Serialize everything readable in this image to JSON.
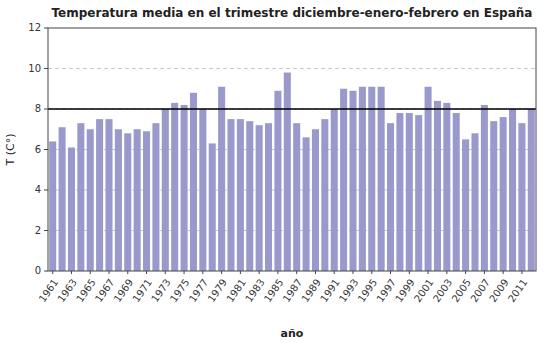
{
  "chart_data": {
    "type": "bar",
    "title": "Temperatura media en el trimestre diciembre-enero-febrero en España",
    "x_label": "año",
    "y_label": "T (C°)",
    "categories": [
      "1961",
      null,
      "1963",
      null,
      "1965",
      null,
      "1967",
      null,
      "1969",
      null,
      "1971",
      null,
      "1973",
      null,
      "1975",
      null,
      "1977",
      null,
      "1979",
      null,
      "1981",
      null,
      "1983",
      null,
      "1985",
      null,
      "1987",
      null,
      "1989",
      null,
      "1991",
      null,
      "1993",
      null,
      "1995",
      null,
      "1997",
      null,
      "1999",
      null,
      "2001",
      null,
      "2003",
      null,
      "2005",
      null,
      "2007",
      null,
      "2009",
      null,
      "2011",
      null
    ],
    "values": [
      6.4,
      7.1,
      6.1,
      7.3,
      7.0,
      7.5,
      7.5,
      7.0,
      6.8,
      7.0,
      6.9,
      7.3,
      8.0,
      8.3,
      8.2,
      8.8,
      8.0,
      6.3,
      9.1,
      7.5,
      7.5,
      7.4,
      7.2,
      7.3,
      8.9,
      9.8,
      7.3,
      6.6,
      7.0,
      7.5,
      8.0,
      9.0,
      8.9,
      9.1,
      9.1,
      9.1,
      7.3,
      7.8,
      7.8,
      7.7,
      9.1,
      8.4,
      8.3,
      7.8,
      6.5,
      6.8,
      8.2,
      7.4,
      7.6,
      8.0,
      7.3,
      8.0
    ],
    "color": "#9999cc",
    "reference_line": 8,
    "ylim": [
      0,
      12
    ],
    "yticks": [
      0,
      2,
      4,
      6,
      8,
      10,
      12
    ],
    "grid": true
  }
}
